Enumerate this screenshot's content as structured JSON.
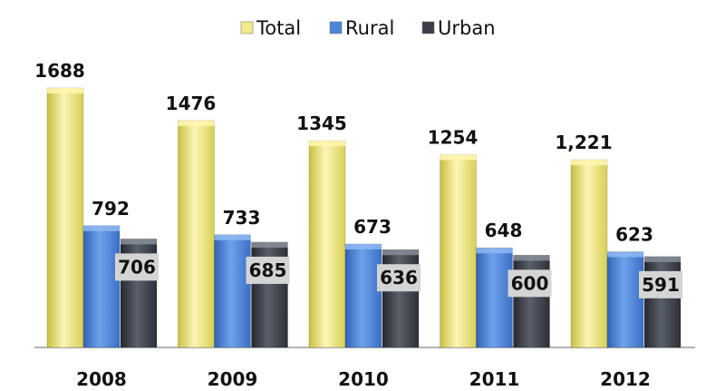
{
  "chart_data": {
    "type": "bar",
    "title": "",
    "xlabel": "",
    "ylabel": "",
    "categories": [
      "2008",
      "2009",
      "2010",
      "2011",
      "2012"
    ],
    "series": [
      {
        "name": "Total",
        "values": [
          1688,
          1476,
          1345,
          1254,
          1221
        ],
        "labels": [
          "1688",
          "1476",
          "1345",
          "1254",
          "1,221"
        ]
      },
      {
        "name": "Rural",
        "values": [
          792,
          733,
          673,
          648,
          623
        ],
        "labels": [
          "792",
          "733",
          "673",
          "648",
          "623"
        ]
      },
      {
        "name": "Urban",
        "values": [
          706,
          685,
          636,
          600,
          591
        ],
        "labels": [
          "706",
          "685",
          "636",
          "600",
          "591"
        ]
      }
    ],
    "ylim": [
      0,
      1688
    ],
    "grid": false,
    "legend_position": "top-center",
    "colors": {
      "Total": "#f2ea8a",
      "Rural": "#4f86d8",
      "Urban": "#3b3f49"
    }
  }
}
